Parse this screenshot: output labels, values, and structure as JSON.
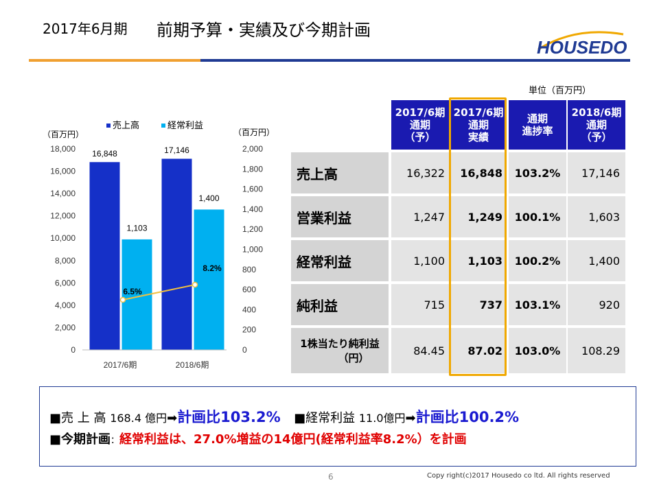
{
  "header": {
    "period": "2017年6月期",
    "title": "前期予算・実績及び今期計画",
    "logo_text": "HOUSEDO"
  },
  "unit": "単位（百万円）",
  "chart_data": {
    "type": "bar",
    "categories": [
      "2017/6期",
      "2018/6期"
    ],
    "series": [
      {
        "name": "売上高",
        "values": [
          16848,
          17146
        ],
        "labels": [
          "16,848",
          "17,146"
        ],
        "color": "#1530c8",
        "axis": "left"
      },
      {
        "name": "経常利益",
        "values": [
          1103,
          1400
        ],
        "labels": [
          "1,103",
          "1,400"
        ],
        "color": "#00b0f0",
        "axis": "right"
      }
    ],
    "line": {
      "values": [
        6.5,
        8.2
      ],
      "labels": [
        "6.5%",
        "8.2%"
      ],
      "color": "#f0c040"
    },
    "left_axis": {
      "label": "（百万円）",
      "min": 0,
      "max": 18000,
      "ticks": [
        "0",
        "2,000",
        "4,000",
        "6,000",
        "8,000",
        "10,000",
        "12,000",
        "14,000",
        "16,000",
        "18,000"
      ]
    },
    "right_axis": {
      "label": "（百万円）",
      "min": 0,
      "max": 2000,
      "ticks": [
        "0",
        "200",
        "400",
        "600",
        "800",
        "1,000",
        "1,200",
        "1,400",
        "1,600",
        "1,800",
        "2,000"
      ]
    },
    "legend_placement": "top"
  },
  "table": {
    "headers": [
      [
        "2017/6期",
        "通期",
        "（予）"
      ],
      [
        "2017/6期",
        "通期",
        "実績"
      ],
      [
        "通期",
        "進捗率"
      ],
      [
        "2018/6期",
        "通期",
        "（予）"
      ]
    ],
    "rows": [
      {
        "label": "売上高",
        "values": [
          "16,322",
          "16,848",
          "103.2%",
          "17,146"
        ]
      },
      {
        "label": "営業利益",
        "values": [
          "1,247",
          "1,249",
          "100.1%",
          "1,603"
        ]
      },
      {
        "label": "経常利益",
        "values": [
          "1,100",
          "1,103",
          "100.2%",
          "1,400"
        ]
      },
      {
        "label": "純利益",
        "values": [
          "715",
          "737",
          "103.1%",
          "920"
        ]
      },
      {
        "label": "1株当たり純利益",
        "label2": "（円）",
        "values": [
          "84.45",
          "87.02",
          "103.0%",
          "108.29"
        ]
      }
    ]
  },
  "summary": {
    "l1_a": "■売 上 高",
    "l1_b": "168.4 億円",
    "l1_arrow": "➡",
    "l1_c": "計画比103.2%",
    "l1_d": "■経常利益",
    "l1_e": "11.0億円",
    "l1_arrow2": "➡",
    "l1_f": "計画比100.2%",
    "l2_a": "■今期計画",
    "l2_b": "：",
    "l2_c": "経常利益は、27.0%増益の14億円(経常利益率8.2%）を計画"
  },
  "footer": {
    "page": "6",
    "copyright": "Copy right(c)2017 Housedo co ltd. All rights reserved"
  }
}
